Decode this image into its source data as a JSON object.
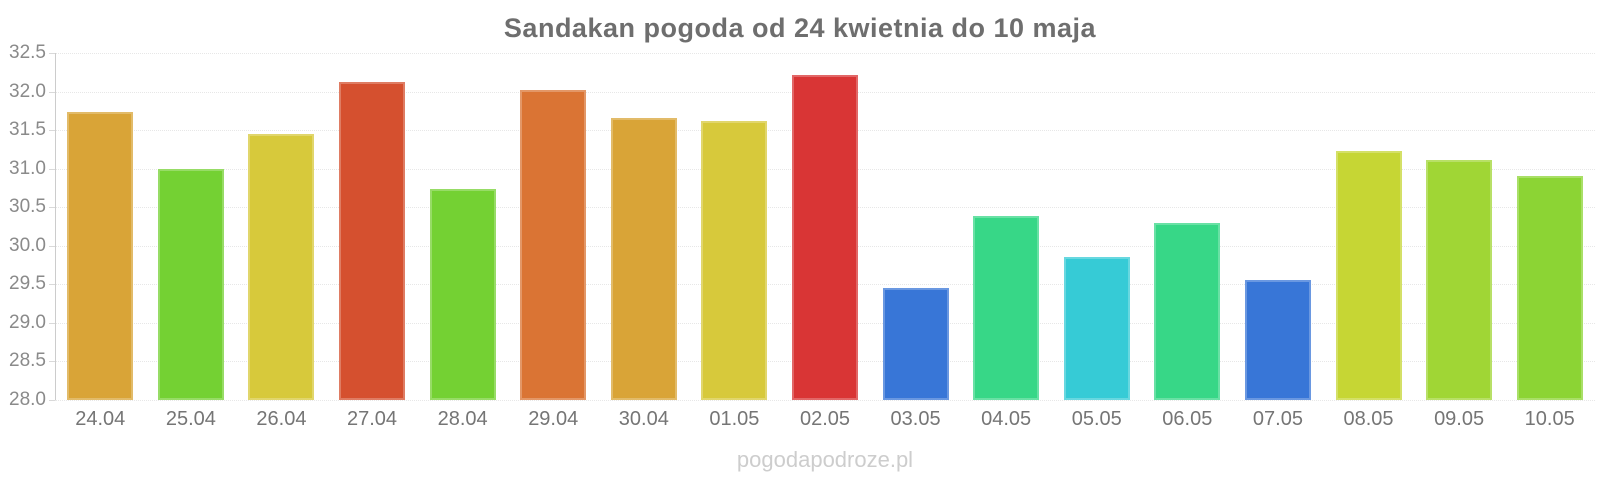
{
  "title": "Sandakan pogoda od 24 kwietnia do 10 maja",
  "watermark": "pogodapodroze.pl",
  "colors": {
    "title_text": "#6e6e6e",
    "axis_line": "#cccccc",
    "gridline": "#e7e7e7",
    "y_label_text": "#8a8a8a",
    "x_label_text": "#757575",
    "watermark_text": "#cdcdcd",
    "background": "#ffffff"
  },
  "chart_data": {
    "type": "bar",
    "title": "Sandakan pogoda od 24 kwietnia do 10 maja",
    "xlabel": "",
    "ylabel": "",
    "categories": [
      "24.04",
      "25.04",
      "26.04",
      "27.04",
      "28.04",
      "29.04",
      "30.04",
      "01.05",
      "02.05",
      "03.05",
      "04.05",
      "05.05",
      "06.05",
      "07.05",
      "08.05",
      "09.05",
      "10.05"
    ],
    "values": [
      31.73,
      31.0,
      31.45,
      32.12,
      30.74,
      32.02,
      31.66,
      31.62,
      32.22,
      29.45,
      30.39,
      29.86,
      30.29,
      29.55,
      31.23,
      31.11,
      30.9
    ],
    "bar_colors": [
      "#d9a437",
      "#74d133",
      "#d7c93b",
      "#d5502f",
      "#74d133",
      "#da7434",
      "#d9a437",
      "#d7c93b",
      "#d93535",
      "#3876d7",
      "#37d787",
      "#36cbd6",
      "#37d787",
      "#3876d7",
      "#c6d634",
      "#a0d635",
      "#8cd434"
    ],
    "ylim": [
      28.0,
      32.5
    ],
    "ytick_labels": [
      "32.5",
      "32.0",
      "31.5",
      "31.0",
      "30.5",
      "30.0",
      "29.5",
      "29.0",
      "28.5",
      "28.0"
    ],
    "grid": true,
    "legend_position": "none"
  }
}
